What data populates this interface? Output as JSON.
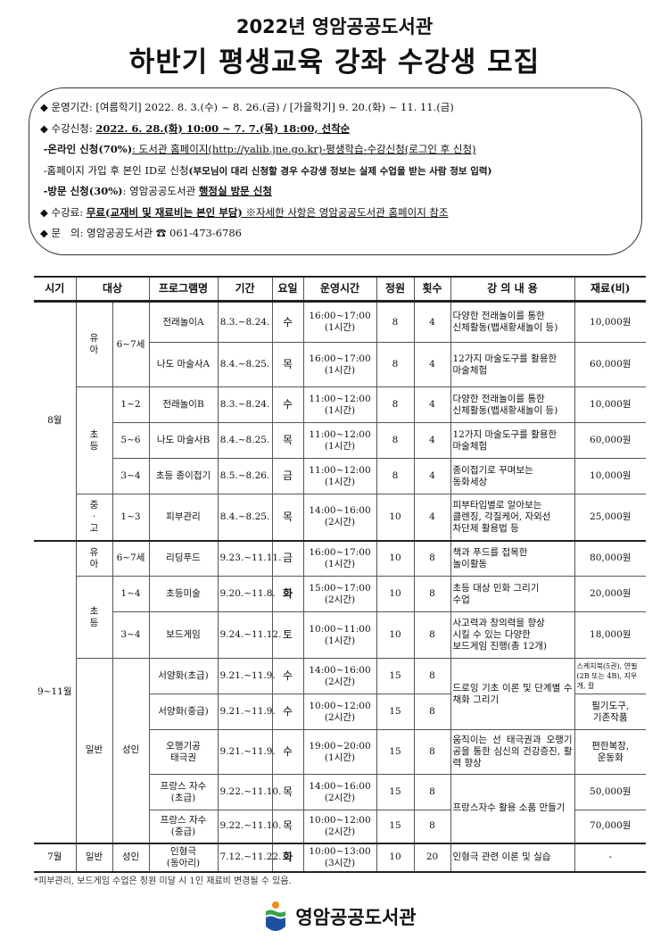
{
  "title_line1": "2022년 영암공공도서관",
  "title_line2": "하반기 평생교육 강좌 수강생 모집",
  "info": {
    "period_label": "운영기간: ",
    "period_value": "[여름학기] 2022. 8. 3.(수) ~ 8. 26.(금) / [가을학기] 9. 20.(화) ~ 11. 11.(금)",
    "apply_label": "수강신청: ",
    "apply_value": "2022. 6. 28.(화) 10:00 ~ 7. 7.(목) 18:00, 선착순",
    "online_label": "-온라인 신청(70%)",
    "online_value": ": 도서관 홈페이지(http://yalib.jne.go.kr)-평생학습-수강신청(로그인 후 신청)",
    "signup_text": "-홈페이지 가입 후 본인 ID로 신청",
    "signup_note": "(부모님이 대리 신청할 경우 수강생 정보는 실제 수업을 받는 사람 정보 입력)",
    "visit_label": "-방문 신청(30%)",
    "visit_text": ": 영암공공도서관 ",
    "visit_value": "행정실 방문 신청",
    "fee_label": "수강료: ",
    "fee_value": "무료(교재비 및 재료비는 본인 부담)",
    "fee_note": " ※자세한 사항은 영암공공도서관 홈페이지 참조",
    "contact_label": "문   의: ",
    "contact_value": "영암공공도서관 ☎ 061-473-6786"
  },
  "table": {
    "headers": [
      "시기",
      "대상",
      "프로그램명",
      "기간",
      "요일",
      "운영시간",
      "정원",
      "횟수",
      "강 의 내 용",
      "재료(비)"
    ],
    "groups": {
      "aug": "8월",
      "sepnov": "9~11월",
      "jul": "7월",
      "yua": "유\n아",
      "chodeung": "초\n등",
      "junggo": "중\n·\n고",
      "ilban": "일반",
      "seongin": "성인",
      "age67": "6~7세"
    },
    "rows": [
      {
        "grade": "6~7세",
        "name": "전래놀이A",
        "period": "8.3.~8.24.",
        "day": "수",
        "time": "16:00~17:00\n(1시간)",
        "cap": "8",
        "count": "4",
        "desc": "다양한 전래놀이를 통한\n신체활동(뱁새황새놀이 등)",
        "fee": "10,000원"
      },
      {
        "name": "나도 마술사A",
        "period": "8.4.~8.25.",
        "day": "목",
        "time": "16:00~17:00\n(1시간)",
        "cap": "8",
        "count": "4",
        "desc": "12가지 마술도구를 활용한\n마술체험",
        "fee": "60,000원"
      },
      {
        "grade": "1~2",
        "name": "전래놀이B",
        "period": "8.3.~8.24.",
        "day": "수",
        "time": "11:00~12:00\n(1시간)",
        "cap": "8",
        "count": "4",
        "desc": "다양한 전래놀이를 통한\n신체활동(뱁새황새놀이 등)",
        "fee": "10,000원"
      },
      {
        "grade": "5~6",
        "name": "나도 마술사B",
        "period": "8.4.~8.25.",
        "day": "목",
        "time": "11:00~12:00\n(1시간)",
        "cap": "8",
        "count": "4",
        "desc": "12가지 마술도구를 활용한\n마술체험",
        "fee": "60,000원"
      },
      {
        "grade": "3~4",
        "name": "초등 종이접기",
        "period": "8.5.~8.26.",
        "day": "금",
        "time": "11:00~12:00\n(1시간)",
        "cap": "8",
        "count": "4",
        "desc": "종이접기로 꾸며보는\n동화세상",
        "fee": "10,000원"
      },
      {
        "grade": "1~3",
        "name": "피부관리",
        "period": "8.4.~8.25.",
        "day": "목",
        "time": "14:00~16:00\n(2시간)",
        "cap": "10",
        "count": "4",
        "desc": "피부타입별로 알아보는\n클렌징, 각질케어, 자외선\n차단제 활용법 등",
        "fee": "25,000원"
      },
      {
        "grade": "6~7세",
        "name": "리딩푸드",
        "period": "9.23.~11.11.",
        "day": "금",
        "time": "16:00~17:00\n(1시간)",
        "cap": "10",
        "count": "8",
        "desc": "책과 푸드를 접목한\n놀이활동",
        "fee": "80,000원"
      },
      {
        "grade": "1~4",
        "name": "초등미술",
        "period": "9.20.~11.8.",
        "day": "화",
        "time": "15:00~17:00\n(2시간)",
        "cap": "10",
        "count": "8",
        "desc": "초등 대상 민화 그리기\n수업",
        "fee": "20,000원"
      },
      {
        "grade": "3~4",
        "name": "보드게임",
        "period": "9.24.~11.12.",
        "day": "토",
        "time": "10:00~11:00\n(1시간)",
        "cap": "10",
        "count": "8",
        "desc": "사고력과 창의력을 향상\n시킬 수 있는 다양한\n보드게임 진행(총 12개)",
        "fee": "18,000원"
      },
      {
        "name": "서양화(초급)",
        "period": "9.21.~11.9.",
        "day": "수",
        "time": "14:00~16:00\n(2시간)",
        "cap": "15",
        "count": "8",
        "desc": "드로잉 기초 이론 및 단계별 수채화 그리기",
        "fee": "스케치북(5권), 연필(2B 또는 4B), 지우개, 칼"
      },
      {
        "name": "서양화(중급)",
        "period": "9.21.~11.9.",
        "day": "수",
        "time": "10:00~12:00\n(2시간)",
        "cap": "15",
        "count": "8",
        "fee": "필기도구,\n기존작품"
      },
      {
        "name": "오행기공\n태극권",
        "period": "9.21.~11.9.",
        "day": "수",
        "time": "19:00~20:00\n(1시간)",
        "cap": "15",
        "count": "8",
        "desc": "움직이는 선 태극권과 오행기공을 통한 심신의 건강증진, 활력 향상",
        "fee": "편한복장,\n운동화"
      },
      {
        "name": "프랑스 자수\n(초급)",
        "period": "9.22.~11.10.",
        "day": "목",
        "time": "14:00~16:00\n(2시간)",
        "cap": "15",
        "count": "8",
        "desc": "프랑스자수 활용 소품 만들기",
        "fee": "50,000원"
      },
      {
        "name": "프랑스 자수\n(중급)",
        "period": "9.22.~11.10.",
        "day": "목",
        "time": "10:00~12:00\n(2시간)",
        "cap": "15",
        "count": "8",
        "fee": "70,000원"
      },
      {
        "name": "인형극\n(동아리)",
        "period": "7.12.~11.22.",
        "day": "화",
        "time": "10:00~13:00\n(3시간)",
        "cap": "10",
        "count": "20",
        "desc": "인형극 관련 이론 및 실습",
        "fee": "-"
      }
    ]
  },
  "footnote": "*피부관리, 보드게임 수업은 정원 미달 시 1인 재료비 변경될 수 있음.",
  "logo_text": "영암공공도서관",
  "colors": {
    "logo_blue": "#1d4fa0",
    "logo_green": "#3aa14a",
    "logo_orange": "#f08a1c"
  }
}
